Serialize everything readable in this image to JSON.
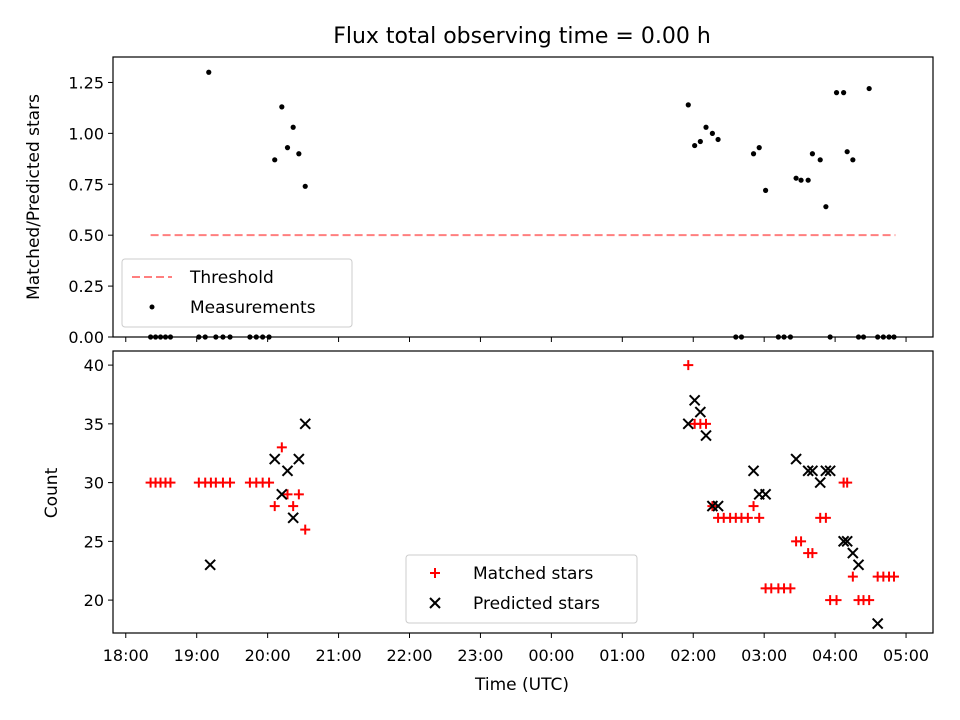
{
  "chart_data": [
    {
      "type": "scatter",
      "title": "Flux total observing time = 0.00 h",
      "xlabel": "",
      "ylabel": "Matched/Predicted stars",
      "ylim": [
        0,
        1.375
      ],
      "xlim": [
        -0.18,
        11.38
      ],
      "yticks": [
        0.0,
        0.25,
        0.5,
        0.75,
        1.0,
        1.25
      ],
      "ytick_labels": [
        "0.00",
        "0.25",
        "0.50",
        "0.75",
        "1.00",
        "1.25"
      ],
      "legend": {
        "placement": "lower-left",
        "entries": [
          "Threshold",
          "Measurements"
        ]
      },
      "threshold": {
        "name": "Threshold",
        "x": [
          0.35,
          10.85
        ],
        "y": 0.5,
        "color": "#ff7f7f"
      },
      "series": [
        {
          "name": "Measurements",
          "color": "#000000",
          "x": [
            0.35,
            0.42,
            0.49,
            0.56,
            0.63,
            1.03,
            1.12,
            1.27,
            1.37,
            1.47,
            1.75,
            1.84,
            1.93,
            2.02,
            1.17,
            2.1,
            2.2,
            2.28,
            2.36,
            2.44,
            2.53,
            7.93,
            8.02,
            8.1,
            8.18,
            8.27,
            8.35,
            8.6,
            8.68,
            8.85,
            8.93,
            9.02,
            9.2,
            9.28,
            9.37,
            9.45,
            9.52,
            9.62,
            9.68,
            9.79,
            9.87,
            9.93,
            10.02,
            10.12,
            10.17,
            10.25,
            10.33,
            10.4,
            10.48,
            10.6,
            10.68,
            10.76,
            10.83
          ],
          "y": [
            0,
            0,
            0,
            0,
            0,
            0,
            0,
            0,
            0,
            0,
            0,
            0,
            0,
            0,
            1.3,
            0.87,
            1.13,
            0.93,
            1.03,
            0.9,
            0.74,
            1.14,
            0.94,
            0.96,
            1.03,
            1.0,
            0.97,
            0,
            0,
            0.9,
            0.93,
            0.72,
            0,
            0,
            0,
            0.78,
            0.77,
            0.77,
            0.9,
            0.87,
            0.64,
            0,
            1.2,
            1.2,
            0.91,
            0.87,
            0,
            0,
            1.22,
            0,
            0,
            0,
            0
          ]
        }
      ]
    },
    {
      "type": "scatter",
      "title": "",
      "xlabel": "Time (UTC)",
      "ylabel": "Count",
      "ylim": [
        17.2,
        41.2
      ],
      "xlim": [
        -0.18,
        11.38
      ],
      "yticks": [
        20,
        25,
        30,
        35,
        40
      ],
      "xticks": [
        0,
        1,
        2,
        3,
        4,
        5,
        6,
        7,
        8,
        9,
        10,
        11
      ],
      "xtick_labels": [
        "18:00",
        "19:00",
        "20:00",
        "21:00",
        "22:00",
        "23:00",
        "00:00",
        "01:00",
        "02:00",
        "03:00",
        "04:00",
        "05:00"
      ],
      "legend": {
        "placement": "lower-center",
        "entries": [
          "Matched stars",
          "Predicted stars"
        ]
      },
      "series": [
        {
          "name": "Matched stars",
          "marker": "plus",
          "color": "#ff0000",
          "x": [
            0.35,
            0.42,
            0.49,
            0.56,
            0.63,
            1.03,
            1.12,
            1.2,
            1.27,
            1.37,
            1.47,
            1.75,
            1.84,
            1.93,
            2.02,
            2.1,
            2.2,
            2.28,
            2.36,
            2.44,
            2.53,
            7.93,
            8.02,
            8.1,
            8.18,
            8.27,
            8.35,
            8.43,
            8.52,
            8.6,
            8.68,
            8.77,
            8.85,
            8.93,
            9.02,
            9.1,
            9.2,
            9.28,
            9.37,
            9.45,
            9.52,
            9.62,
            9.68,
            9.79,
            9.87,
            9.93,
            10.02,
            10.12,
            10.17,
            10.25,
            10.33,
            10.4,
            10.48,
            10.6,
            10.68,
            10.76,
            10.83
          ],
          "y": [
            30,
            30,
            30,
            30,
            30,
            30,
            30,
            30,
            30,
            30,
            30,
            30,
            30,
            30,
            30,
            28,
            33,
            29,
            28,
            29,
            26,
            40,
            35,
            35,
            35,
            28,
            27,
            27,
            27,
            27,
            27,
            27,
            28,
            27,
            21,
            21,
            21,
            21,
            21,
            25,
            25,
            24,
            24,
            27,
            27,
            20,
            20,
            30,
            30,
            22,
            20,
            20,
            20,
            22,
            22,
            22,
            22
          ]
        },
        {
          "name": "Predicted stars",
          "marker": "x",
          "color": "#000000",
          "x": [
            1.19,
            2.1,
            2.2,
            2.28,
            2.36,
            2.44,
            2.53,
            7.93,
            8.02,
            8.1,
            8.18,
            8.27,
            8.35,
            8.85,
            8.93,
            9.02,
            9.45,
            9.62,
            9.68,
            9.79,
            9.87,
            9.93,
            10.12,
            10.17,
            10.25,
            10.33,
            10.6
          ],
          "y": [
            23,
            32,
            29,
            31,
            27,
            32,
            35,
            35,
            37,
            36,
            34,
            28,
            28,
            31,
            29,
            29,
            32,
            31,
            31,
            30,
            31,
            31,
            25,
            25,
            24,
            23,
            18
          ]
        }
      ]
    }
  ]
}
